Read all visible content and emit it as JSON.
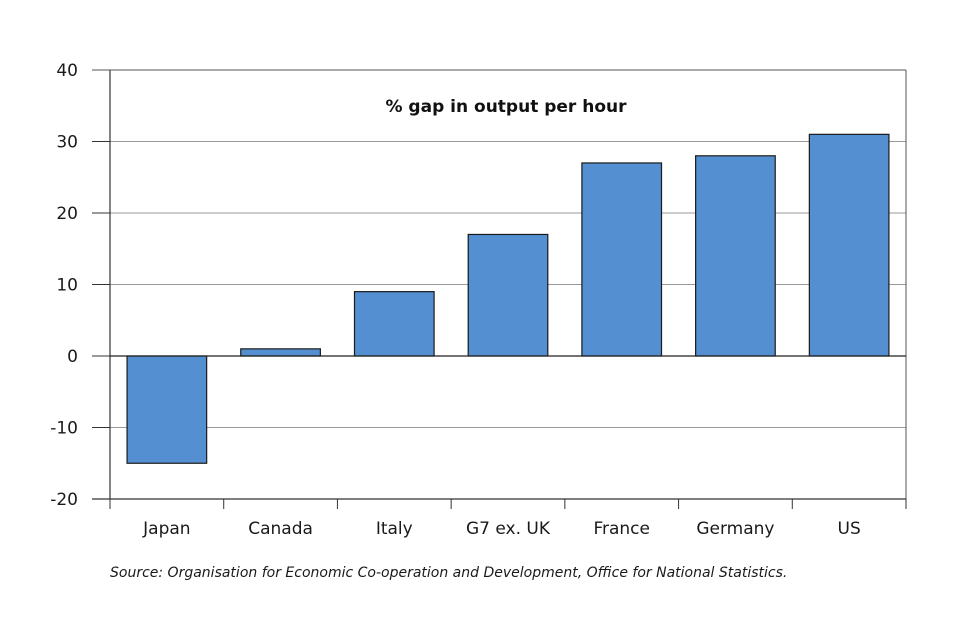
{
  "chart_data": {
    "type": "bar",
    "title": "% gap in output per hour",
    "categories": [
      "Japan",
      "Canada",
      "Italy",
      "G7 ex. UK",
      "France",
      "Germany",
      "US"
    ],
    "values": [
      -15,
      1,
      9,
      17,
      27,
      28,
      31
    ],
    "ylim": [
      -20,
      40
    ],
    "yticks": [
      -20,
      -10,
      0,
      10,
      20,
      30,
      40
    ],
    "grid": true,
    "legend": "none",
    "bar_color": "#548fd1",
    "bar_edge_color": "#1a1a1a"
  },
  "source": "Source: Organisation for Economic Co-operation and Development, Office for National Statistics."
}
